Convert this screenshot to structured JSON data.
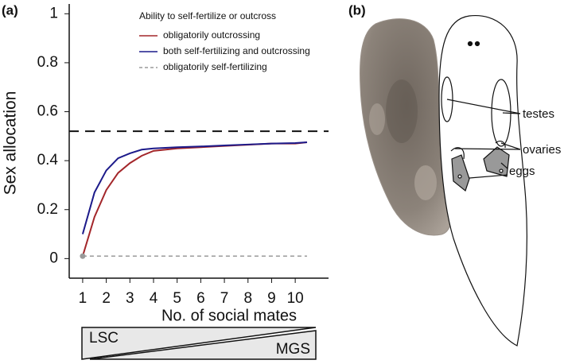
{
  "panel_labels": [
    "(a)",
    "(b)"
  ],
  "chart_data": {
    "type": "line",
    "x": [
      1,
      1.5,
      2,
      2.5,
      3,
      3.5,
      4,
      5,
      6,
      7,
      8,
      9,
      10,
      10.5
    ],
    "xlim": [
      0.43,
      11.41
    ],
    "xticks": [
      1,
      2,
      3,
      4,
      5,
      6,
      7,
      8,
      9,
      10
    ],
    "ylim": [
      -0.08,
      1.04
    ],
    "yticks": [
      0,
      0.2,
      0.4,
      0.6,
      0.8,
      1
    ],
    "xlabel": "No. of social mates",
    "ylabel": "Sex allocation",
    "legend_title": "Ability to self-fertilize or outcross",
    "legend": "upper right",
    "series": [
      {
        "name": "obligatorily outcrossing",
        "color": "#a3262a",
        "style": "solid",
        "values": [
          0.01,
          0.17,
          0.28,
          0.35,
          0.39,
          0.42,
          0.44,
          0.45,
          0.455,
          0.46,
          0.465,
          0.47,
          0.47,
          0.475
        ]
      },
      {
        "name": "both self-fertilizing and outcrossing",
        "color": "#1c1a8a",
        "style": "solid",
        "values": [
          0.1,
          0.27,
          0.36,
          0.41,
          0.43,
          0.445,
          0.45,
          0.455,
          0.458,
          0.462,
          0.466,
          0.47,
          0.472,
          0.475
        ]
      },
      {
        "name": "obligatorily self-fertilizing",
        "color": "#9a9a9a",
        "style": "dashed",
        "marker": true,
        "x": [
          1,
          10.5
        ],
        "values": [
          0.01,
          0.01
        ]
      },
      {
        "color": "#111111",
        "style": "dashed",
        "x": [
          0.43,
          11.41
        ],
        "values": [
          0.52,
          0.52
        ]
      }
    ]
  },
  "gradient": {
    "left": "LSC",
    "right": "MGS"
  },
  "diagram": {
    "labels": [
      "testes",
      "ovaries",
      "eggs"
    ]
  }
}
